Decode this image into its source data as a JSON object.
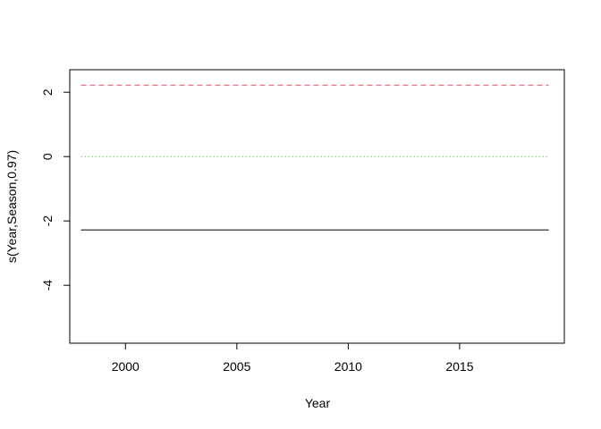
{
  "chart_data": {
    "type": "line",
    "title": "",
    "xlabel": "Year",
    "ylabel": "s(Year,Season,0.97)",
    "xlim": [
      1997.5,
      2019.7
    ],
    "ylim": [
      -5.8,
      2.7
    ],
    "x_ticks": [
      2000,
      2005,
      2010,
      2015
    ],
    "x_tick_labels": [
      "2000",
      "2005",
      "2010",
      "2015"
    ],
    "y_ticks": [
      2,
      0,
      -2,
      -4
    ],
    "y_tick_labels": [
      "2",
      "0",
      "-2",
      "-4"
    ],
    "grid": false,
    "series": [
      {
        "style": "solid",
        "color": "#000000",
        "x": [
          1998,
          2019
        ],
        "y": [
          -2.28,
          -2.28
        ]
      },
      {
        "style": "dashed",
        "color": "#DF536B",
        "x": [
          1998,
          2019
        ],
        "y": [
          2.22,
          2.22
        ]
      },
      {
        "style": "dotted",
        "color": "#61D04F",
        "x": [
          1998,
          2019
        ],
        "y": [
          0.0,
          0.0
        ]
      }
    ]
  }
}
